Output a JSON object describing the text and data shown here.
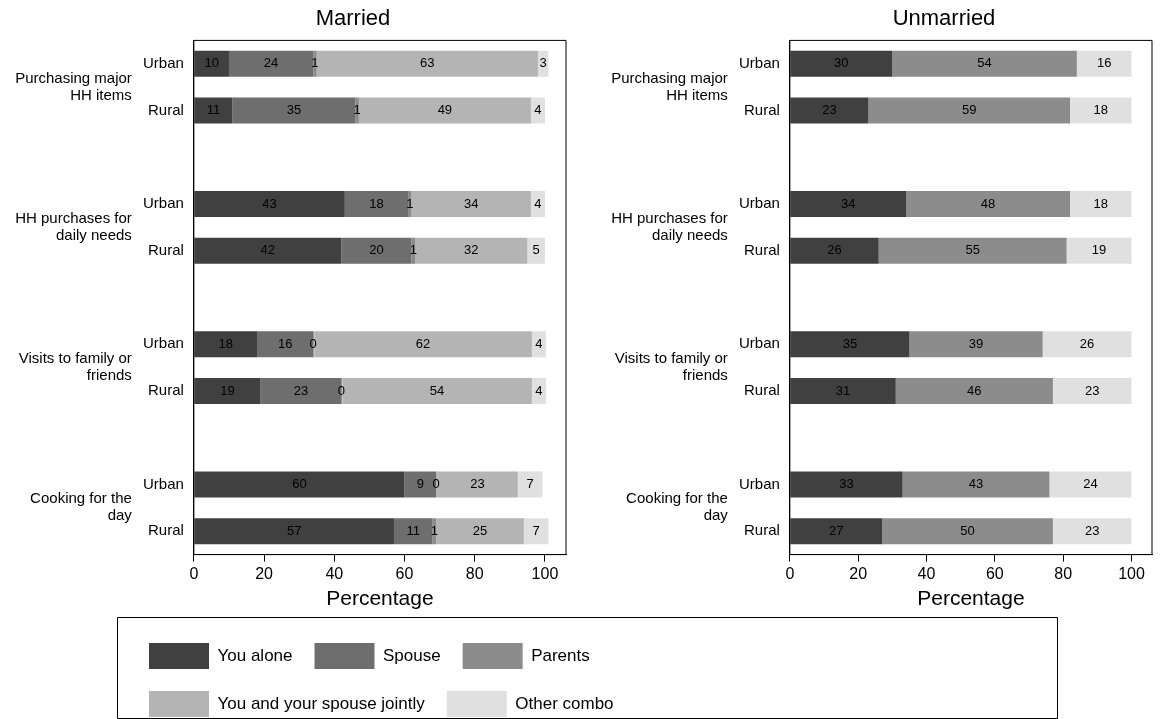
{
  "chart_data": [
    {
      "type": "bar",
      "orientation": "horizontal",
      "stacked": true,
      "title": "Married",
      "xlabel": "Percentage",
      "categories": [
        "Urban",
        "Rural",
        null,
        "Urban",
        "Rural",
        null,
        "Urban",
        "Rural",
        null,
        "Urban",
        "Rural"
      ],
      "annotations": [
        "Purchasing major HH items",
        "HH purchases for daily needs",
        "Visits to family or friends",
        "Cooking for the day"
      ],
      "xlim": [
        0,
        106
      ],
      "xticks": [
        0,
        20,
        40,
        60,
        80,
        100
      ],
      "grid": false,
      "legend": "bottom",
      "data_labels": true,
      "series": [
        {
          "name": "You alone",
          "color": "#404040",
          "values": [
            10,
            11,
            null,
            43,
            42,
            null,
            18,
            19,
            null,
            60,
            57
          ]
        },
        {
          "name": "Spouse",
          "color": "#6e6e6e",
          "values": [
            24,
            35,
            null,
            18,
            20,
            null,
            16,
            23,
            null,
            9,
            11
          ]
        },
        {
          "name": "Parents",
          "color": "#8c8c8c",
          "values": [
            1,
            1,
            null,
            1,
            1,
            null,
            0,
            0,
            null,
            0,
            1
          ]
        },
        {
          "name": "You and your spouse jointly",
          "color": "#b4b4b4",
          "values": [
            63,
            49,
            null,
            34,
            32,
            null,
            62,
            54,
            null,
            23,
            25
          ]
        },
        {
          "name": "Other combo",
          "color": "#e0e0e0",
          "values": [
            3,
            4,
            null,
            4,
            5,
            null,
            4,
            4,
            null,
            7,
            7
          ]
        }
      ]
    },
    {
      "type": "bar",
      "orientation": "horizontal",
      "stacked": true,
      "title": "Unmarried",
      "xlabel": "Percentage",
      "categories": [
        "Urban",
        "Rural",
        null,
        "Urban",
        "Rural",
        null,
        "Urban",
        "Rural",
        null,
        "Urban",
        "Rural"
      ],
      "annotations": [
        "Purchasing major HH items",
        "HH purchases for daily needs",
        "Visits to family or friends",
        "Cooking for the day"
      ],
      "xlim": [
        0,
        106
      ],
      "xticks": [
        0,
        20,
        40,
        60,
        80,
        100
      ],
      "grid": false,
      "data_labels": true,
      "series": [
        {
          "color": "#404040",
          "values": [
            30,
            23,
            null,
            34,
            26,
            null,
            35,
            31,
            null,
            33,
            27
          ]
        },
        {
          "color": "#8c8c8c",
          "values": [
            54,
            59,
            null,
            48,
            55,
            null,
            39,
            46,
            null,
            43,
            50
          ]
        },
        {
          "color": "#e0e0e0",
          "values": [
            16,
            18,
            null,
            18,
            19,
            null,
            26,
            23,
            null,
            24,
            23
          ]
        }
      ]
    }
  ]
}
